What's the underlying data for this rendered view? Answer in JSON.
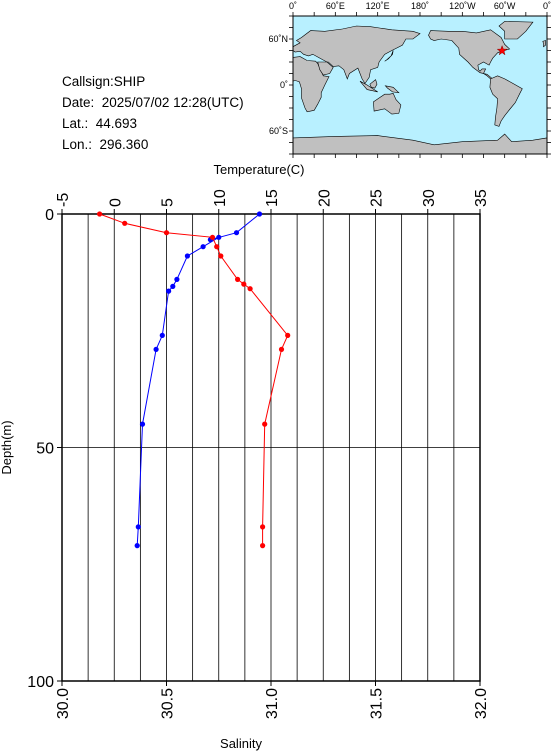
{
  "header": {
    "callsign_line": "Callsign:SHIP",
    "date_line": "Date:  2025/07/02 12:28(UTC)",
    "lat_line": "Lat.:  44.693",
    "lon_line": "Lon.:  296.360"
  },
  "map": {
    "top_labels": [
      "0˚",
      "60˚E",
      "120˚E",
      "180˚",
      "120˚W",
      "60˚W",
      "0˚"
    ],
    "lat_labels": [
      "60˚N",
      "0˚",
      "60˚S"
    ],
    "ocean_color": "#b8f0ff",
    "land_color": "#c0c0c0",
    "marker_color": "#ff0000",
    "marker": {
      "lon": 296.36,
      "lat": 44.693
    }
  },
  "chart_data": {
    "type": "line",
    "y_axis": {
      "label": "Depth(m)",
      "range": [
        0,
        100
      ],
      "ticks": [
        "0",
        "50",
        "100"
      ],
      "inverted": true
    },
    "x_axis_top": {
      "label": "Temperature(C)",
      "range": [
        -5,
        35
      ],
      "ticks": [
        "-5",
        "0",
        "5",
        "10",
        "15",
        "20",
        "25",
        "30",
        "35"
      ]
    },
    "x_axis_bottom": {
      "label": "Salinity",
      "range": [
        30.0,
        32.0
      ],
      "ticks": [
        "30.0",
        "30.5",
        "31.0",
        "31.5",
        "32.0"
      ]
    },
    "grid": true,
    "series": [
      {
        "axis": "temperature",
        "color": "#0000ff",
        "points": [
          [
            13.9,
            0.0
          ],
          [
            11.7,
            4.0
          ],
          [
            9.2,
            5.5
          ],
          [
            10.0,
            5.0
          ],
          [
            8.5,
            7.0
          ],
          [
            7.0,
            9.0
          ],
          [
            6.0,
            14.0
          ],
          [
            5.6,
            15.5
          ],
          [
            5.2,
            16.5
          ],
          [
            4.6,
            26.0
          ],
          [
            4.0,
            29.0
          ],
          [
            2.7,
            45.0
          ],
          [
            2.3,
            67.0
          ],
          [
            2.2,
            71.0
          ]
        ]
      },
      {
        "axis": "salinity",
        "color": "#ff0000",
        "points": [
          [
            30.18,
            0.0
          ],
          [
            30.3,
            2.0
          ],
          [
            30.5,
            4.0
          ],
          [
            30.72,
            5.0
          ],
          [
            30.74,
            7.0
          ],
          [
            30.76,
            9.0
          ],
          [
            30.84,
            14.0
          ],
          [
            30.87,
            15.0
          ],
          [
            30.9,
            16.0
          ],
          [
            31.08,
            26.0
          ],
          [
            31.05,
            29.0
          ],
          [
            30.97,
            45.0
          ],
          [
            30.96,
            67.0
          ],
          [
            30.96,
            71.0
          ]
        ]
      }
    ]
  }
}
